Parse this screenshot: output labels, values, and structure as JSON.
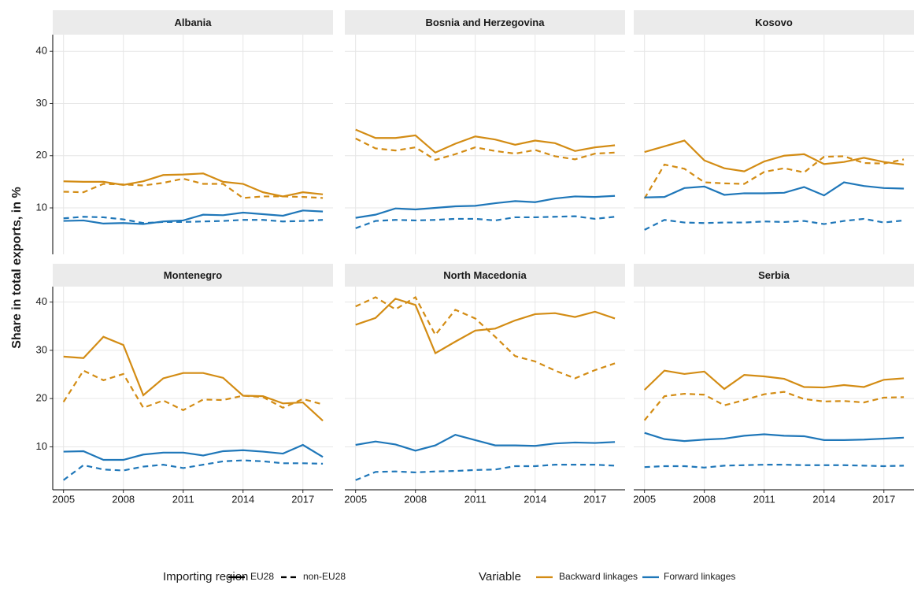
{
  "y_label": "Share in total exports, in %",
  "legend": {
    "linetype_title": "Importing region",
    "color_title": "Variable"
  },
  "chart_data": [
    {
      "type": "line",
      "title": "Albania",
      "x": [
        2005,
        2006,
        2007,
        2008,
        2009,
        2010,
        2011,
        2012,
        2013,
        2014,
        2015,
        2016,
        2017,
        2018
      ],
      "series": [
        {
          "variable": "Backward linkages",
          "region": "EU28",
          "color": "#d38c14",
          "dash": "solid",
          "values": [
            15.1,
            15,
            15,
            14.4,
            15.1,
            16.3,
            16.4,
            16.6,
            15,
            14.6,
            13,
            12.2,
            13,
            12.6
          ]
        },
        {
          "variable": "Backward linkages",
          "region": "non-EU28",
          "color": "#d38c14",
          "dash": "dashed",
          "values": [
            13.1,
            13,
            14.6,
            14.5,
            14.3,
            14.8,
            15.6,
            14.6,
            14.6,
            11.9,
            12.2,
            12.2,
            12.1,
            11.9
          ]
        },
        {
          "variable": "Forward linkages",
          "region": "EU28",
          "color": "#1f77b9",
          "dash": "solid",
          "values": [
            7.5,
            7.6,
            7,
            7.1,
            6.9,
            7.4,
            7.6,
            8.7,
            8.6,
            9.1,
            8.8,
            8.5,
            9.5,
            9.3
          ]
        },
        {
          "variable": "Forward linkages",
          "region": "non-EU28",
          "color": "#1f77b9",
          "dash": "dashed",
          "values": [
            8,
            8.3,
            8.2,
            7.8,
            7.1,
            7.3,
            7.3,
            7.4,
            7.5,
            7.7,
            7.7,
            7.4,
            7.5,
            7.7
          ]
        }
      ],
      "xlim": [
        2004.46,
        2018.51
      ],
      "ylim": [
        1.1,
        43.2
      ],
      "xticks": [
        2005,
        2008,
        2011,
        2014,
        2017
      ],
      "yticks": [
        10,
        20,
        30,
        40
      ],
      "grid": true
    },
    {
      "type": "line",
      "title": "Bosnia and Herzegovina",
      "x": [
        2005,
        2006,
        2007,
        2008,
        2009,
        2010,
        2011,
        2012,
        2013,
        2014,
        2015,
        2016,
        2017,
        2018
      ],
      "series": [
        {
          "variable": "Backward linkages",
          "region": "EU28",
          "color": "#d38c14",
          "dash": "solid",
          "values": [
            25,
            23.4,
            23.4,
            23.9,
            20.6,
            22.3,
            23.7,
            23.1,
            22.1,
            22.9,
            22.4,
            20.9,
            21.6,
            22
          ]
        },
        {
          "variable": "Backward linkages",
          "region": "non-EU28",
          "color": "#d38c14",
          "dash": "dashed",
          "values": [
            23.3,
            21.4,
            21,
            21.6,
            19.2,
            20.3,
            21.6,
            20.9,
            20.4,
            21.1,
            19.9,
            19.3,
            20.4,
            20.6
          ]
        },
        {
          "variable": "Forward linkages",
          "region": "EU28",
          "color": "#1f77b9",
          "dash": "solid",
          "values": [
            8.1,
            8.7,
            9.9,
            9.7,
            10,
            10.3,
            10.4,
            10.9,
            11.3,
            11.1,
            11.8,
            12.2,
            12.1,
            12.3
          ]
        },
        {
          "variable": "Forward linkages",
          "region": "non-EU28",
          "color": "#1f77b9",
          "dash": "dashed",
          "values": [
            6.1,
            7.5,
            7.7,
            7.6,
            7.7,
            7.9,
            7.9,
            7.6,
            8.2,
            8.2,
            8.3,
            8.4,
            7.9,
            8.3
          ]
        }
      ],
      "xlim": [
        2004.46,
        2018.51
      ],
      "ylim": [
        1.1,
        43.2
      ],
      "xticks": [
        2005,
        2008,
        2011,
        2014,
        2017
      ],
      "yticks": [
        10,
        20,
        30,
        40
      ],
      "grid": true
    },
    {
      "type": "line",
      "title": "Kosovo",
      "x": [
        2005,
        2006,
        2007,
        2008,
        2009,
        2010,
        2011,
        2012,
        2013,
        2014,
        2015,
        2016,
        2017,
        2018
      ],
      "series": [
        {
          "variable": "Backward linkages",
          "region": "EU28",
          "color": "#d38c14",
          "dash": "solid",
          "values": [
            20.7,
            21.8,
            22.9,
            19.1,
            17.6,
            17,
            18.9,
            20,
            20.3,
            18.4,
            18.8,
            19.6,
            18.8,
            18.3
          ]
        },
        {
          "variable": "Backward linkages",
          "region": "non-EU28",
          "color": "#d38c14",
          "dash": "dashed",
          "values": [
            11.8,
            18.3,
            17.5,
            14.9,
            14.7,
            14.6,
            16.9,
            17.6,
            16.8,
            19.8,
            19.9,
            18.6,
            18.5,
            19.3
          ]
        },
        {
          "variable": "Forward linkages",
          "region": "EU28",
          "color": "#1f77b9",
          "dash": "solid",
          "values": [
            12,
            12.1,
            13.8,
            14.1,
            12.5,
            12.8,
            12.8,
            12.9,
            14,
            12.4,
            14.9,
            14.2,
            13.8,
            13.7
          ]
        },
        {
          "variable": "Forward linkages",
          "region": "non-EU28",
          "color": "#1f77b9",
          "dash": "dashed",
          "values": [
            5.8,
            7.7,
            7.2,
            7.1,
            7.2,
            7.2,
            7.4,
            7.3,
            7.5,
            6.9,
            7.5,
            7.9,
            7.2,
            7.6
          ]
        }
      ],
      "xlim": [
        2004.46,
        2018.51
      ],
      "ylim": [
        1.1,
        43.2
      ],
      "xticks": [
        2005,
        2008,
        2011,
        2014,
        2017
      ],
      "yticks": [
        10,
        20,
        30,
        40
      ],
      "grid": true
    },
    {
      "type": "line",
      "title": "Montenegro",
      "x": [
        2005,
        2006,
        2007,
        2008,
        2009,
        2010,
        2011,
        2012,
        2013,
        2014,
        2015,
        2016,
        2017,
        2018
      ],
      "series": [
        {
          "variable": "Backward linkages",
          "region": "EU28",
          "color": "#d38c14",
          "dash": "solid",
          "values": [
            28.7,
            28.4,
            32.8,
            31.1,
            20.7,
            24.2,
            25.3,
            25.3,
            24.3,
            20.6,
            20.5,
            19,
            19.2,
            15.4
          ]
        },
        {
          "variable": "Backward linkages",
          "region": "non-EU28",
          "color": "#d38c14",
          "dash": "dashed",
          "values": [
            19.3,
            25.8,
            23.8,
            25.1,
            18.1,
            19.6,
            17.6,
            19.8,
            19.7,
            20.6,
            20.3,
            18.1,
            19.9,
            18.8
          ]
        },
        {
          "variable": "Forward linkages",
          "region": "EU28",
          "color": "#1f77b9",
          "dash": "solid",
          "values": [
            9,
            9.1,
            7.3,
            7.3,
            8.4,
            8.8,
            8.8,
            8.2,
            9.1,
            9.3,
            9,
            8.6,
            10.4,
            7.9
          ]
        },
        {
          "variable": "Forward linkages",
          "region": "non-EU28",
          "color": "#1f77b9",
          "dash": "dashed",
          "values": [
            3.1,
            6.2,
            5.3,
            5.1,
            5.9,
            6.3,
            5.6,
            6.3,
            7,
            7.2,
            7,
            6.6,
            6.6,
            6.5
          ]
        }
      ],
      "xlim": [
        2004.46,
        2018.51
      ],
      "ylim": [
        1.1,
        43.2
      ],
      "xticks": [
        2005,
        2008,
        2011,
        2014,
        2017
      ],
      "yticks": [
        10,
        20,
        30,
        40
      ],
      "grid": true
    },
    {
      "type": "line",
      "title": "North Macedonia",
      "x": [
        2005,
        2006,
        2007,
        2008,
        2009,
        2010,
        2011,
        2012,
        2013,
        2014,
        2015,
        2016,
        2017,
        2018
      ],
      "series": [
        {
          "variable": "Backward linkages",
          "region": "EU28",
          "color": "#d38c14",
          "dash": "solid",
          "values": [
            35.3,
            36.7,
            40.7,
            39.4,
            29.4,
            31.8,
            34.1,
            34.5,
            36.2,
            37.5,
            37.7,
            36.9,
            38,
            36.6
          ]
        },
        {
          "variable": "Backward linkages",
          "region": "non-EU28",
          "color": "#d38c14",
          "dash": "dashed",
          "values": [
            39.1,
            41,
            38.5,
            41,
            33.2,
            38.4,
            36.6,
            32.8,
            28.8,
            27.7,
            25.8,
            24.2,
            25.9,
            27.3
          ]
        },
        {
          "variable": "Forward linkages",
          "region": "EU28",
          "color": "#1f77b9",
          "dash": "solid",
          "values": [
            10.4,
            11.1,
            10.5,
            9.2,
            10.3,
            12.5,
            11.4,
            10.3,
            10.3,
            10.2,
            10.7,
            10.9,
            10.8,
            11
          ]
        },
        {
          "variable": "Forward linkages",
          "region": "non-EU28",
          "color": "#1f77b9",
          "dash": "dashed",
          "values": [
            3.1,
            4.8,
            4.9,
            4.7,
            4.9,
            5,
            5.2,
            5.3,
            6,
            6,
            6.3,
            6.3,
            6.3,
            6.1
          ]
        }
      ],
      "xlim": [
        2004.46,
        2018.51
      ],
      "ylim": [
        1.1,
        43.2
      ],
      "xticks": [
        2005,
        2008,
        2011,
        2014,
        2017
      ],
      "yticks": [
        10,
        20,
        30,
        40
      ],
      "grid": true
    },
    {
      "type": "line",
      "title": "Serbia",
      "x": [
        2005,
        2006,
        2007,
        2008,
        2009,
        2010,
        2011,
        2012,
        2013,
        2014,
        2015,
        2016,
        2017,
        2018
      ],
      "series": [
        {
          "variable": "Backward linkages",
          "region": "EU28",
          "color": "#d38c14",
          "dash": "solid",
          "values": [
            21.8,
            25.8,
            25.1,
            25.6,
            22,
            24.9,
            24.6,
            24.1,
            22.4,
            22.3,
            22.8,
            22.4,
            23.9,
            24.2
          ]
        },
        {
          "variable": "Backward linkages",
          "region": "non-EU28",
          "color": "#d38c14",
          "dash": "dashed",
          "values": [
            15.5,
            20.5,
            21,
            20.8,
            18.6,
            19.7,
            20.9,
            21.4,
            19.9,
            19.4,
            19.5,
            19.2,
            20.2,
            20.3
          ]
        },
        {
          "variable": "Forward linkages",
          "region": "EU28",
          "color": "#1f77b9",
          "dash": "solid",
          "values": [
            12.9,
            11.6,
            11.2,
            11.5,
            11.7,
            12.3,
            12.6,
            12.3,
            12.2,
            11.4,
            11.4,
            11.5,
            11.7,
            11.9
          ]
        },
        {
          "variable": "Forward linkages",
          "region": "non-EU28",
          "color": "#1f77b9",
          "dash": "dashed",
          "values": [
            5.8,
            6,
            6,
            5.7,
            6.1,
            6.2,
            6.3,
            6.3,
            6.2,
            6.2,
            6.2,
            6.1,
            6,
            6.1
          ]
        }
      ],
      "xlim": [
        2004.46,
        2018.51
      ],
      "ylim": [
        1.1,
        43.2
      ],
      "xticks": [
        2005,
        2008,
        2011,
        2014,
        2017
      ],
      "yticks": [
        10,
        20,
        30,
        40
      ],
      "grid": true
    }
  ]
}
